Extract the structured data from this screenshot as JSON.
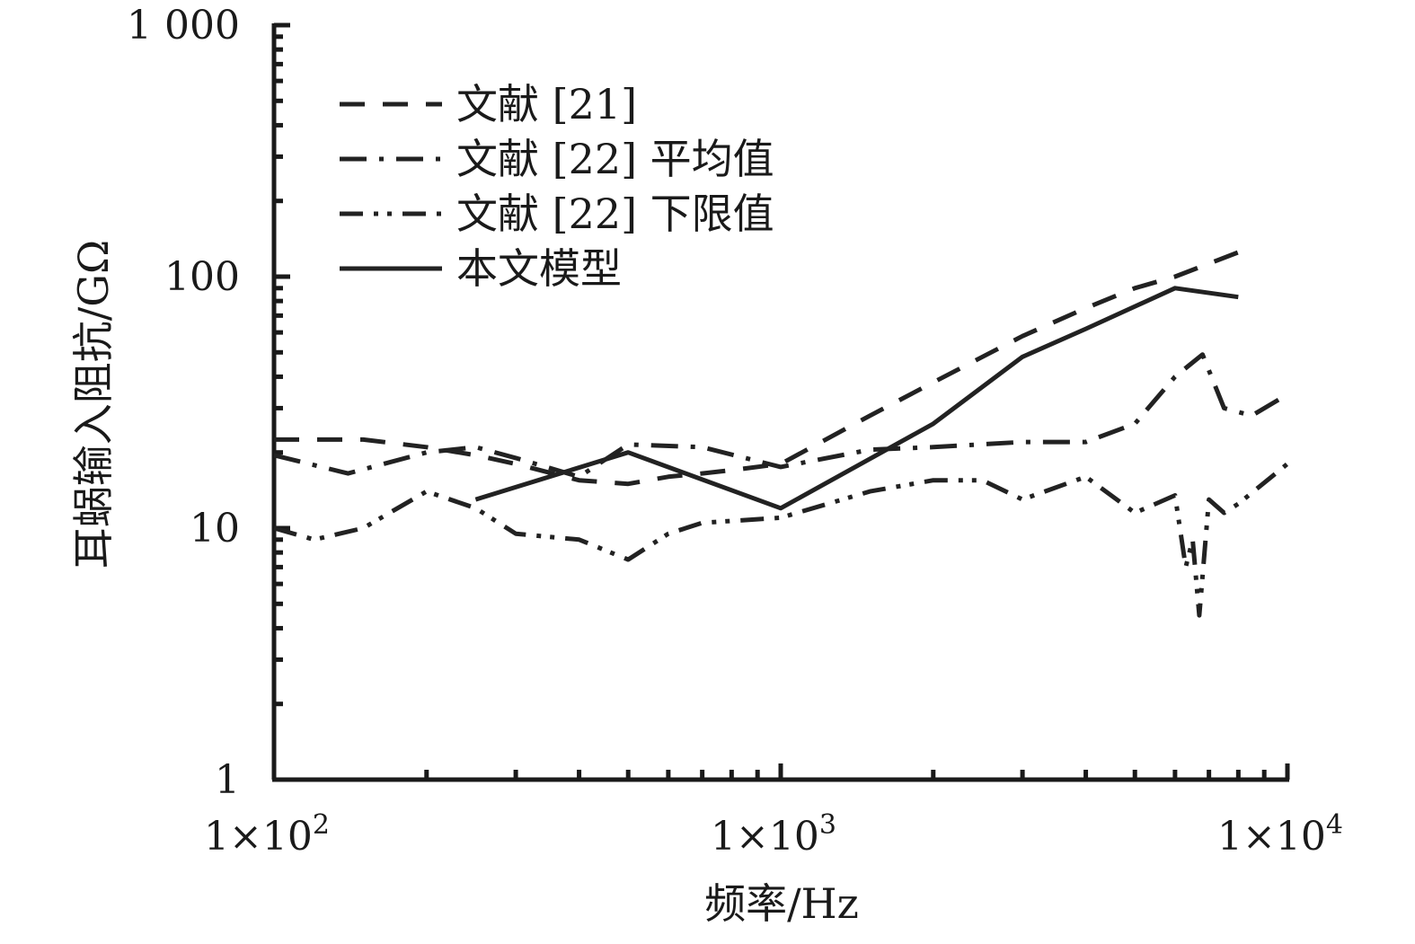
{
  "chart_data": {
    "type": "line",
    "title": "",
    "xlabel": "频率/Hz",
    "ylabel": "耳蜗输入阻抗/GΩ",
    "x_scale": "log",
    "y_scale": "log",
    "xlim": [
      100,
      10000
    ],
    "ylim": [
      1,
      1000
    ],
    "x_tick_values": [
      100,
      1000,
      10000
    ],
    "x_tick_labels": [
      {
        "base": "1×10",
        "exp": "2"
      },
      {
        "base": "1×10",
        "exp": "3"
      },
      {
        "base": "1×10",
        "exp": "4"
      }
    ],
    "y_tick_values": [
      1,
      10,
      100,
      1000
    ],
    "y_tick_labels": [
      "1",
      "10",
      "100",
      "1 000"
    ],
    "grid": false,
    "legend_position": "top-left",
    "series": [
      {
        "name": "文献 [21]",
        "style": "dashed",
        "color": "#222222",
        "x": [
          100,
          150,
          200,
          250,
          300,
          400,
          500,
          600,
          700,
          800,
          1000,
          1500,
          2000,
          3000,
          4000,
          5000,
          6000,
          8000
        ],
        "y": [
          22.5,
          22.5,
          21,
          19.5,
          18,
          15.5,
          15,
          16,
          16.5,
          17,
          18,
          28,
          38,
          58,
          75,
          90,
          100,
          125
        ]
      },
      {
        "name": "文献 [22] 平均值",
        "style": "dash-dot",
        "color": "#222222",
        "x": [
          100,
          140,
          200,
          250,
          300,
          400,
          500,
          700,
          1000,
          1500,
          2000,
          3000,
          4000,
          5000,
          6000,
          6800,
          7500,
          8500,
          10000
        ],
        "y": [
          19.5,
          16.5,
          20,
          21,
          19,
          16,
          21.5,
          21,
          17.5,
          20.5,
          21,
          22,
          22,
          26,
          40,
          49,
          30,
          28,
          34
        ]
      },
      {
        "name": "文献 [22] 下限值",
        "style": "dash-dot-dot",
        "color": "#222222",
        "x": [
          100,
          120,
          150,
          200,
          250,
          300,
          400,
          500,
          600,
          700,
          1000,
          1500,
          2000,
          2500,
          3000,
          4000,
          5000,
          6000,
          6300,
          6500,
          6700,
          7000,
          7500,
          8000,
          10000
        ],
        "y": [
          10,
          9,
          10,
          14,
          12,
          9.5,
          9,
          7.5,
          9.5,
          10.5,
          11,
          14,
          15.5,
          15.5,
          13,
          16,
          11.5,
          13.5,
          7,
          9,
          4.5,
          13,
          11.5,
          12.5,
          18
        ]
      },
      {
        "name": "本文模型",
        "style": "solid",
        "color": "#222222",
        "x": [
          250,
          500,
          1000,
          2000,
          3000,
          4000,
          6000,
          8000
        ],
        "y": [
          13,
          20,
          12,
          26,
          48,
          62,
          90,
          83
        ]
      }
    ]
  }
}
